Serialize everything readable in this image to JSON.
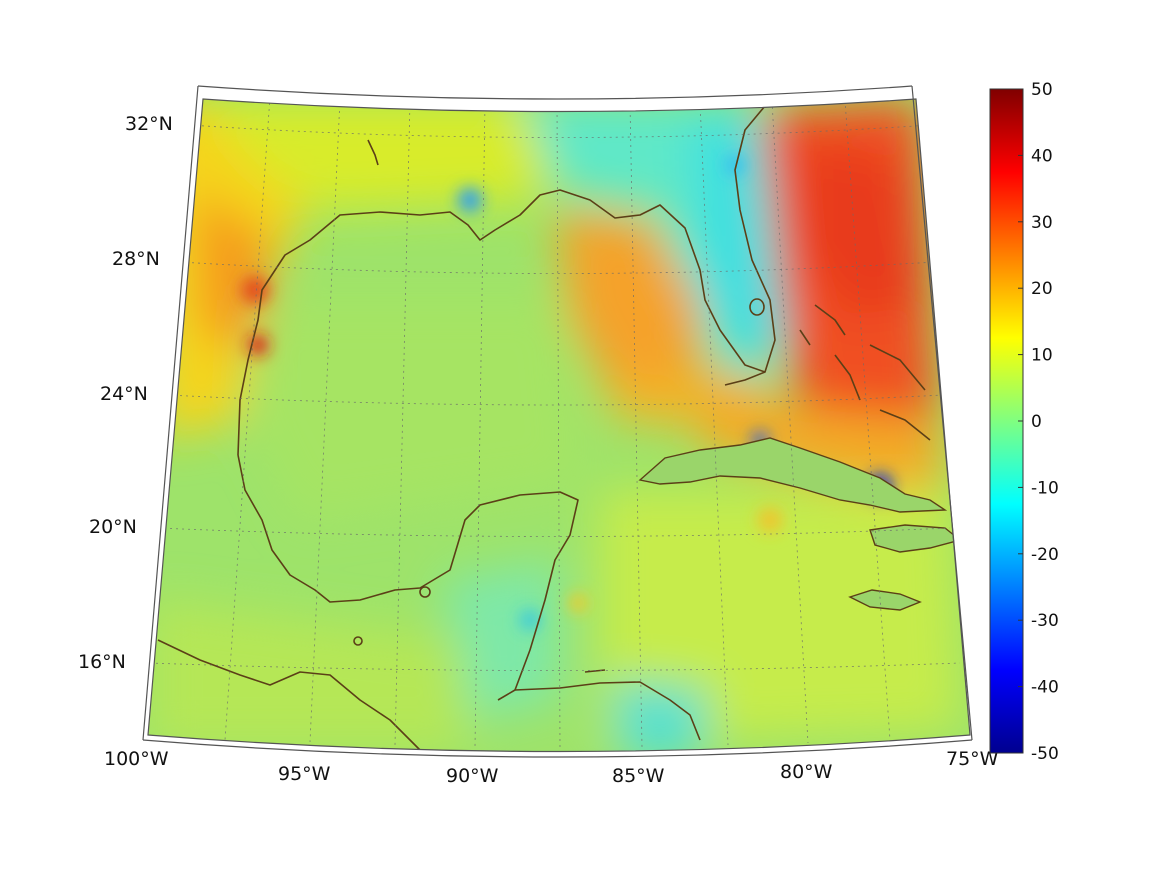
{
  "map": {
    "lon_labels": [
      "100°W",
      "95°W",
      "90°W",
      "85°W",
      "80°W",
      "75°W"
    ],
    "lat_labels": [
      "32°N",
      "28°N",
      "24°N",
      "20°N",
      "16°N"
    ],
    "extent": {
      "lon_min": -100,
      "lon_max": -75,
      "lat_min": 14,
      "lat_max": 33
    },
    "colormap": "jet",
    "colorbar": {
      "ticks": [
        "50",
        "40",
        "30",
        "20",
        "10",
        "0",
        "-10",
        "-20",
        "-30",
        "-40",
        "-50"
      ],
      "min": -50,
      "max": 50
    },
    "coastline_color": "#5b3f17",
    "field_description_regions": {
      "west_texas_mexico_coast": "orange",
      "eastern_gulf_loop": "orange-red",
      "atlantic_east_of_florida": "red",
      "central_gulf": "green-yellow",
      "florida_northern_gulf_coast": "cyan"
    }
  }
}
